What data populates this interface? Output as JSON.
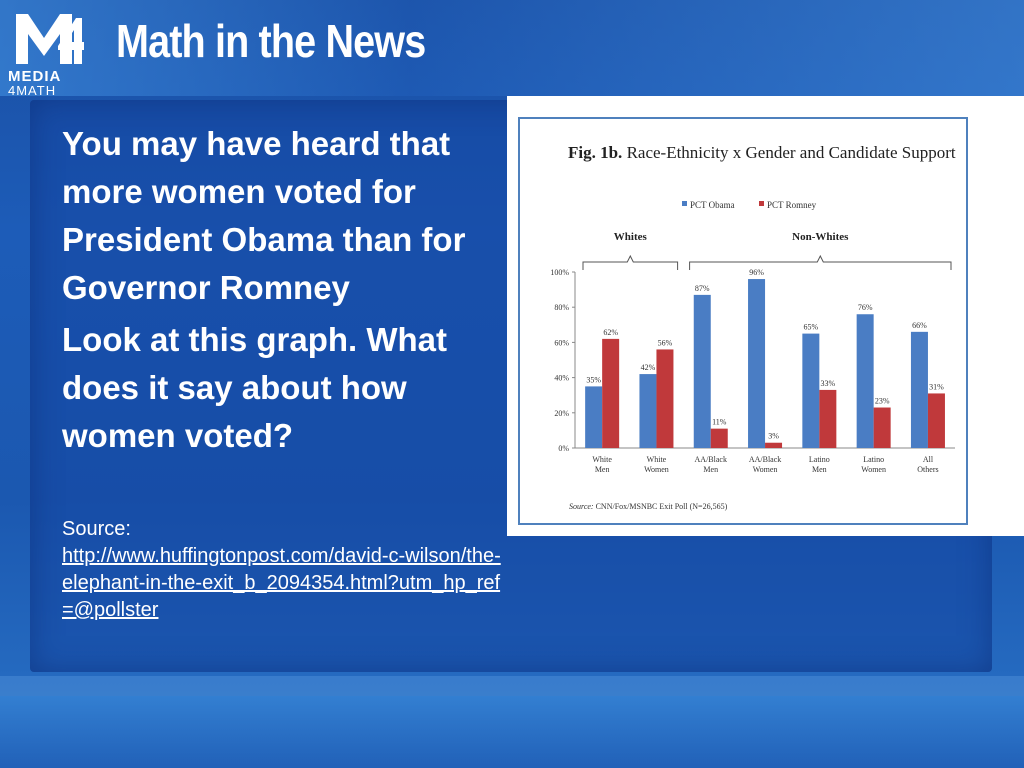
{
  "logo": {
    "mark": "M4",
    "line1": "MEDIA",
    "line2": "4MATH"
  },
  "title": "Math in the News",
  "body": {
    "paragraph1": "You may have heard that more women voted for President Obama than for Governor Romney",
    "paragraph2": "Look at this graph. What does it say about how women voted?"
  },
  "source": {
    "label": "Source:",
    "link": "http://www.huffingtonpost.com/david-c-wilson/the-elephant-in-the-exit_b_2094354.html?utm_hp_ref=@pollster"
  },
  "colors": {
    "obama": "#4a7dc4",
    "romney": "#c0393b",
    "frame": "#4f81bd"
  },
  "chart_data": {
    "type": "bar",
    "title_bold": "Fig. 1b.",
    "title_rest": " Race-Ethnicity x Gender and Candidate Support",
    "group_labels": [
      "Whites",
      "Non-Whites"
    ],
    "categories": [
      [
        "White",
        "Men"
      ],
      [
        "White",
        "Women"
      ],
      [
        "AA/Black",
        "Men"
      ],
      [
        "AA/Black",
        "Women"
      ],
      [
        "Latino",
        "Men"
      ],
      [
        "Latino",
        "Women"
      ],
      [
        "All",
        "Others"
      ]
    ],
    "series": [
      {
        "name": "PCT Obama",
        "values": [
          35,
          42,
          87,
          96,
          65,
          76,
          66
        ],
        "labels": [
          "35%",
          "42%",
          "87%",
          "96%",
          "65%",
          "76%",
          "66%"
        ]
      },
      {
        "name": "PCT Romney",
        "values": [
          62,
          56,
          11,
          3,
          33,
          23,
          31
        ],
        "labels": [
          "62%",
          "56%",
          "11%",
          "3%",
          "33%",
          "23%",
          "31%"
        ]
      }
    ],
    "y_ticks": [
      "0%",
      "20%",
      "40%",
      "60%",
      "80%",
      "100%"
    ],
    "ylim": [
      0,
      100
    ],
    "legend": "top-center",
    "source_label": "Source:",
    "source_text": " CNN/Fox/MSNBC  Exit Poll (N=26,565)"
  }
}
